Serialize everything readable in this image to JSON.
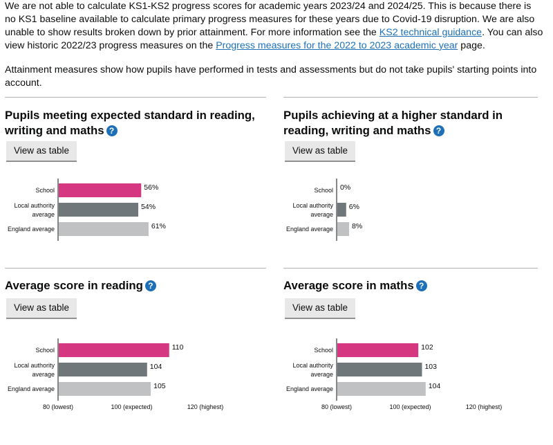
{
  "intro": {
    "p1_a": "We are not able to calculate KS1-KS2 progress scores for academic years 2023/24 and 2024/25. This is because there is no KS1 baseline available to calculate primary progress measures for these years due to Covid-19 disruption. We are also unable to show results broken down by prior attainment. For more information see the ",
    "link1": "KS2 technical guidance",
    "p1_b": ". You can also view historic 2022/23 progress measures on the ",
    "link2": "Progress measures for the 2022 to 2023 academic year",
    "p1_c": " page.",
    "p2": "Attainment measures show how pupils have performed in tests and assessments but do not take pupils' starting points into account."
  },
  "view_table_label": "View as table",
  "help_icon_glyph": "?",
  "colors": {
    "school": "#d53880",
    "local_authority": "#6f777b",
    "england": "#bfc1c3",
    "link": "#1d70b8"
  },
  "cards": [
    {
      "title": "Pupils meeting expected standard in reading, writing and maths"
    },
    {
      "title": "Pupils achieving at a higher standard in reading, writing and maths"
    },
    {
      "title": "Average score in reading"
    },
    {
      "title": "Average score in maths"
    }
  ],
  "chart_data": [
    {
      "type": "bar",
      "orientation": "horizontal",
      "title": "Pupils meeting expected standard in reading, writing and maths",
      "categories": [
        "School",
        "Local authority average",
        "England average"
      ],
      "values": [
        56,
        54,
        61
      ],
      "value_labels": [
        "56%",
        "54%",
        "61%"
      ],
      "xlim": [
        0,
        100
      ],
      "ticks": []
    },
    {
      "type": "bar",
      "orientation": "horizontal",
      "title": "Pupils achieving at a higher standard in reading, writing and maths",
      "categories": [
        "School",
        "Local authority average",
        "England average"
      ],
      "values": [
        0,
        6,
        8
      ],
      "value_labels": [
        "0%",
        "6%",
        "8%"
      ],
      "xlim": [
        0,
        100
      ],
      "ticks": []
    },
    {
      "type": "bar",
      "orientation": "horizontal",
      "title": "Average score in reading",
      "categories": [
        "School",
        "Local authority average",
        "England average"
      ],
      "values": [
        110,
        104,
        105
      ],
      "value_labels": [
        "110",
        "104",
        "105"
      ],
      "xlim": [
        80,
        120
      ],
      "ticks": [
        {
          "value": 80,
          "label": "80 (lowest)"
        },
        {
          "value": 100,
          "label": "100 (expected)"
        },
        {
          "value": 120,
          "label": "120 (highest)"
        }
      ]
    },
    {
      "type": "bar",
      "orientation": "horizontal",
      "title": "Average score in maths",
      "categories": [
        "School",
        "Local authority average",
        "England average"
      ],
      "values": [
        102,
        103,
        104
      ],
      "value_labels": [
        "102",
        "103",
        "104"
      ],
      "xlim": [
        80,
        120
      ],
      "ticks": [
        {
          "value": 80,
          "label": "80 (lowest)"
        },
        {
          "value": 100,
          "label": "100 (expected)"
        },
        {
          "value": 120,
          "label": "120 (highest)"
        }
      ]
    }
  ]
}
